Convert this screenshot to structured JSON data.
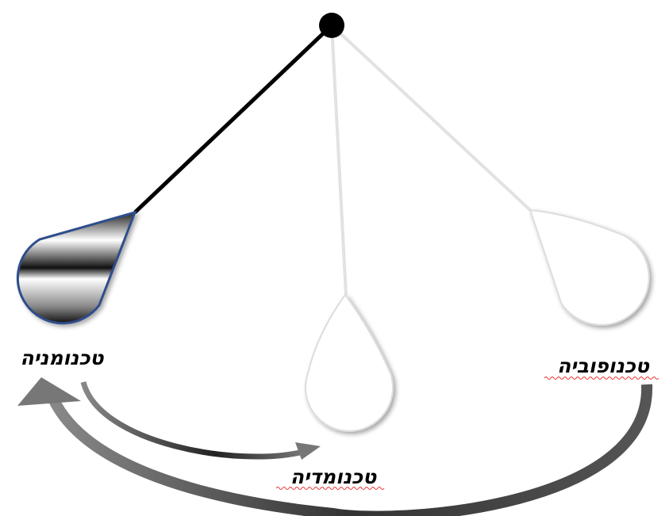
{
  "labels": [
    "טכנומניה",
    "טכנומדיה",
    "טכנופוביה"
  ]
}
